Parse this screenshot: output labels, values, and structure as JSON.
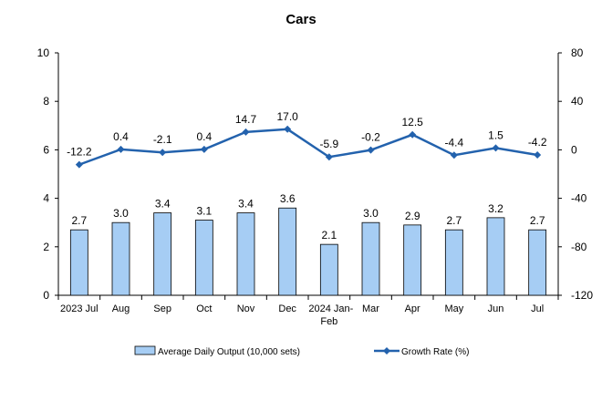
{
  "chart_data": {
    "type": "bar",
    "title": "Cars",
    "categories": [
      "2023 Jul",
      "Aug",
      "Sep",
      "Oct",
      "Nov",
      "Dec",
      "2024 Jan-Feb",
      "Mar",
      "Apr",
      "May",
      "Jun",
      "Jul"
    ],
    "series": [
      {
        "name": "Average Daily Output (10,000 sets)",
        "type": "bar",
        "axis": "left",
        "color": "#a6cdf4",
        "values": [
          2.7,
          3.0,
          3.4,
          3.1,
          3.4,
          3.6,
          2.1,
          3.0,
          2.9,
          2.7,
          3.2,
          2.7
        ],
        "labels": [
          "2.7",
          "3.0",
          "3.4",
          "3.1",
          "3.4",
          "3.6",
          "2.1",
          "3.0",
          "2.9",
          "2.7",
          "3.2",
          "2.7"
        ]
      },
      {
        "name": "Growth Rate (%)",
        "type": "line",
        "axis": "right",
        "color": "#2362ad",
        "values": [
          -12.2,
          0.4,
          -2.1,
          0.4,
          14.7,
          17.0,
          -5.9,
          -0.2,
          12.5,
          -4.4,
          1.5,
          -4.2
        ],
        "labels": [
          "-12.2",
          "0.4",
          "-2.1",
          "0.4",
          "14.7",
          "17.0",
          "-5.9",
          "-0.2",
          "12.5",
          "-4.4",
          "1.5",
          "-4.2"
        ]
      }
    ],
    "y_left": {
      "range": [
        0,
        10
      ],
      "ticks": [
        "0",
        "2",
        "4",
        "6",
        "8",
        "10"
      ]
    },
    "y_right": {
      "range": [
        -120,
        80
      ],
      "ticks": [
        "-120",
        "-80",
        "-40",
        "0",
        "40",
        "80"
      ]
    },
    "grid": false,
    "legend_position": "bottom"
  }
}
